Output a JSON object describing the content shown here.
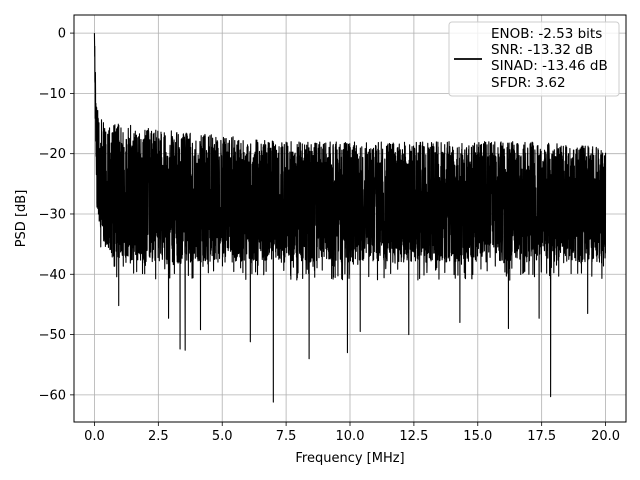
{
  "chart_data": {
    "type": "line",
    "xlabel": "Frequency [MHz]",
    "ylabel": "PSD [dB]",
    "xlim": [
      -0.8,
      20.8
    ],
    "ylim": [
      -64.5,
      3
    ],
    "xticks": [
      0.0,
      2.5,
      5.0,
      7.5,
      10.0,
      12.5,
      15.0,
      17.5,
      20.0
    ],
    "xtick_labels": [
      "0.0",
      "2.5",
      "5.0",
      "7.5",
      "10.0",
      "12.5",
      "15.0",
      "17.5",
      "20.0"
    ],
    "yticks": [
      0,
      -10,
      -20,
      -30,
      -40,
      -50,
      -60
    ],
    "ytick_labels": [
      "0",
      "−10",
      "−20",
      "−30",
      "−40",
      "−50",
      "−60"
    ],
    "grid": true,
    "legend_position": "top-right",
    "colors": {
      "line": "#000000",
      "grid": "#b0b0b0"
    },
    "series": [
      {
        "legend_lines": [
          "ENOB: -2.53 bits",
          "SNR: -13.32 dB",
          "SINAD: -13.46 dB",
          "SFDR: 3.62"
        ],
        "envelope": {
          "x": [
            0.0,
            0.05,
            0.1,
            0.2,
            0.5,
            1.0,
            2.5,
            5.0,
            7.5,
            10.0,
            12.5,
            15.0,
            17.5,
            20.0
          ],
          "upper": [
            0.0,
            -7,
            -12,
            -14,
            -15,
            -15,
            -16,
            -17,
            -18,
            -18,
            -18,
            -18,
            -18,
            -19
          ],
          "mean": [
            0.0,
            -15,
            -20,
            -24,
            -27,
            -28,
            -28,
            -28,
            -28,
            -28,
            -28,
            -28,
            -28,
            -28
          ],
          "lower": [
            0.0,
            -22,
            -28,
            -33,
            -37,
            -38,
            -38,
            -38,
            -38,
            -38,
            -38,
            -38,
            -38,
            -38
          ]
        },
        "deep_nulls": [
          {
            "x": 0.95,
            "y": -45.2
          },
          {
            "x": 2.9,
            "y": -47.3
          },
          {
            "x": 3.35,
            "y": -52.4
          },
          {
            "x": 3.55,
            "y": -52.6
          },
          {
            "x": 4.15,
            "y": -49.2
          },
          {
            "x": 6.1,
            "y": -51.2
          },
          {
            "x": 7.0,
            "y": -61.2
          },
          {
            "x": 8.4,
            "y": -54.0
          },
          {
            "x": 9.9,
            "y": -53.0
          },
          {
            "x": 10.4,
            "y": -49.5
          },
          {
            "x": 12.3,
            "y": -50.0
          },
          {
            "x": 14.3,
            "y": -48.0
          },
          {
            "x": 16.2,
            "y": -49.0
          },
          {
            "x": 17.4,
            "y": -47.3
          },
          {
            "x": 17.85,
            "y": -60.3
          },
          {
            "x": 19.3,
            "y": -46.5
          }
        ]
      }
    ]
  }
}
